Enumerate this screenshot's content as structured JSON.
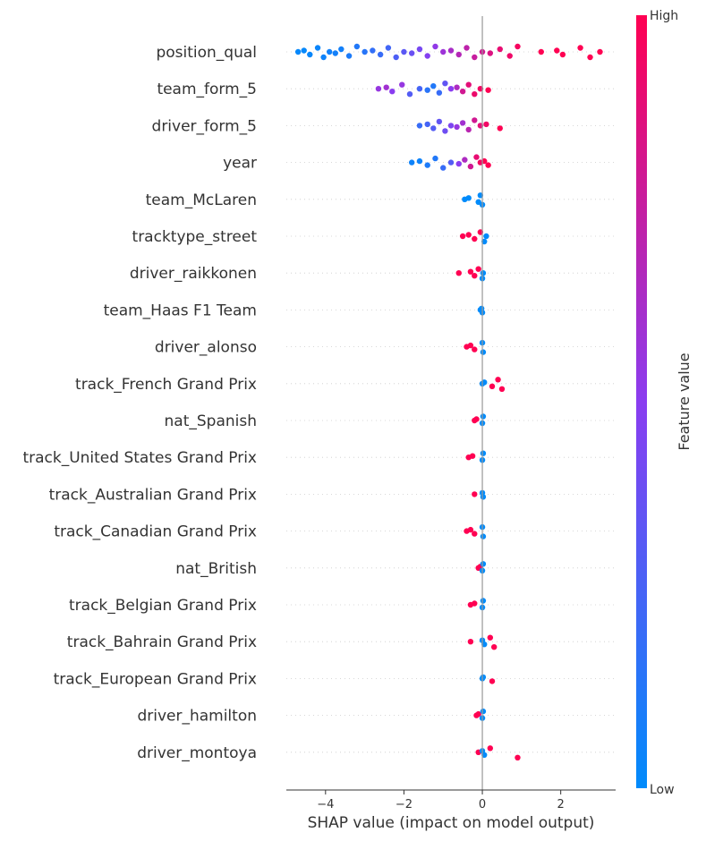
{
  "chart_data": {
    "type": "scatter",
    "subtype": "shap-beeswarm",
    "title": "",
    "xlabel": "SHAP value (impact on model output)",
    "xlim": [
      -5.0,
      3.4
    ],
    "xticks": [
      -4,
      -2,
      0,
      2
    ],
    "xtick_labels": [
      "−4",
      "−2",
      "0",
      "2"
    ],
    "grid": false,
    "zero_line": true,
    "colorbar": {
      "title": "Feature value",
      "high_label": "High",
      "low_label": "Low",
      "low_color": "#008bfb",
      "high_color": "#ff0052"
    },
    "features": [
      {
        "name": "position_qual",
        "points": [
          {
            "x": -4.7,
            "v": 0.02
          },
          {
            "x": -4.55,
            "v": 0.02
          },
          {
            "x": -4.4,
            "v": 0.03
          },
          {
            "x": -4.2,
            "v": 0.04
          },
          {
            "x": -4.05,
            "v": 0.05
          },
          {
            "x": -3.9,
            "v": 0.06
          },
          {
            "x": -3.75,
            "v": 0.07
          },
          {
            "x": -3.6,
            "v": 0.07
          },
          {
            "x": -3.4,
            "v": 0.1
          },
          {
            "x": -3.2,
            "v": 0.12
          },
          {
            "x": -3.0,
            "v": 0.14
          },
          {
            "x": -2.8,
            "v": 0.18
          },
          {
            "x": -2.6,
            "v": 0.2
          },
          {
            "x": -2.4,
            "v": 0.24
          },
          {
            "x": -2.2,
            "v": 0.28
          },
          {
            "x": -2.0,
            "v": 0.33
          },
          {
            "x": -1.8,
            "v": 0.38
          },
          {
            "x": -1.6,
            "v": 0.43
          },
          {
            "x": -1.4,
            "v": 0.48
          },
          {
            "x": -1.2,
            "v": 0.53
          },
          {
            "x": -1.0,
            "v": 0.58
          },
          {
            "x": -0.8,
            "v": 0.63
          },
          {
            "x": -0.6,
            "v": 0.68
          },
          {
            "x": -0.4,
            "v": 0.72
          },
          {
            "x": -0.2,
            "v": 0.76
          },
          {
            "x": 0.0,
            "v": 0.8
          },
          {
            "x": 0.2,
            "v": 0.85
          },
          {
            "x": 0.45,
            "v": 0.9
          },
          {
            "x": 0.7,
            "v": 0.93
          },
          {
            "x": 0.9,
            "v": 0.96
          },
          {
            "x": 1.5,
            "v": 1.0
          },
          {
            "x": 1.9,
            "v": 1.0
          },
          {
            "x": 2.05,
            "v": 1.0
          },
          {
            "x": 2.5,
            "v": 1.0
          },
          {
            "x": 2.75,
            "v": 1.0
          },
          {
            "x": 3.0,
            "v": 1.0
          }
        ]
      },
      {
        "name": "team_form_5",
        "points": [
          {
            "x": -2.65,
            "v": 0.55
          },
          {
            "x": -2.45,
            "v": 0.6
          },
          {
            "x": -2.3,
            "v": 0.5
          },
          {
            "x": -2.05,
            "v": 0.55
          },
          {
            "x": -1.85,
            "v": 0.3
          },
          {
            "x": -1.6,
            "v": 0.25
          },
          {
            "x": -1.4,
            "v": 0.15
          },
          {
            "x": -1.25,
            "v": 0.12
          },
          {
            "x": -1.1,
            "v": 0.2
          },
          {
            "x": -0.95,
            "v": 0.35
          },
          {
            "x": -0.8,
            "v": 0.5
          },
          {
            "x": -0.65,
            "v": 0.65
          },
          {
            "x": -0.5,
            "v": 0.8
          },
          {
            "x": -0.35,
            "v": 0.88
          },
          {
            "x": -0.2,
            "v": 0.92
          },
          {
            "x": -0.05,
            "v": 0.95
          },
          {
            "x": 0.15,
            "v": 1.0
          }
        ]
      },
      {
        "name": "driver_form_5",
        "points": [
          {
            "x": -1.6,
            "v": 0.2
          },
          {
            "x": -1.4,
            "v": 0.25
          },
          {
            "x": -1.25,
            "v": 0.3
          },
          {
            "x": -1.1,
            "v": 0.35
          },
          {
            "x": -0.95,
            "v": 0.4
          },
          {
            "x": -0.8,
            "v": 0.45
          },
          {
            "x": -0.65,
            "v": 0.55
          },
          {
            "x": -0.5,
            "v": 0.6
          },
          {
            "x": -0.35,
            "v": 0.7
          },
          {
            "x": -0.2,
            "v": 0.8
          },
          {
            "x": -0.05,
            "v": 0.88
          },
          {
            "x": 0.1,
            "v": 0.94
          },
          {
            "x": 0.45,
            "v": 1.0
          }
        ]
      },
      {
        "name": "year",
        "points": [
          {
            "x": -1.8,
            "v": 0.05
          },
          {
            "x": -1.6,
            "v": 0.05
          },
          {
            "x": -1.4,
            "v": 0.1
          },
          {
            "x": -1.2,
            "v": 0.12
          },
          {
            "x": -1.0,
            "v": 0.2
          },
          {
            "x": -0.8,
            "v": 0.3
          },
          {
            "x": -0.6,
            "v": 0.5
          },
          {
            "x": -0.45,
            "v": 0.65
          },
          {
            "x": -0.3,
            "v": 0.8
          },
          {
            "x": -0.15,
            "v": 0.9
          },
          {
            "x": -0.05,
            "v": 0.95
          },
          {
            "x": 0.05,
            "v": 1.0
          },
          {
            "x": 0.15,
            "v": 1.0
          }
        ]
      },
      {
        "name": "team_McLaren",
        "points": [
          {
            "x": -0.45,
            "v": 0.0
          },
          {
            "x": -0.35,
            "v": 0.0
          },
          {
            "x": -0.1,
            "v": 0.0
          },
          {
            "x": -0.05,
            "v": 0.0
          },
          {
            "x": 0.0,
            "v": 0.0
          }
        ]
      },
      {
        "name": "tracktype_street",
        "points": [
          {
            "x": -0.5,
            "v": 1.0
          },
          {
            "x": -0.35,
            "v": 1.0
          },
          {
            "x": -0.2,
            "v": 1.0
          },
          {
            "x": -0.05,
            "v": 1.0
          },
          {
            "x": 0.05,
            "v": 0.0
          },
          {
            "x": 0.1,
            "v": 0.0
          }
        ]
      },
      {
        "name": "driver_raikkonen",
        "points": [
          {
            "x": -0.6,
            "v": 1.0
          },
          {
            "x": -0.3,
            "v": 1.0
          },
          {
            "x": -0.2,
            "v": 1.0
          },
          {
            "x": -0.1,
            "v": 1.0
          },
          {
            "x": 0.0,
            "v": 0.0
          },
          {
            "x": 0.02,
            "v": 0.0
          }
        ]
      },
      {
        "name": "team_Haas F1 Team",
        "points": [
          {
            "x": -0.05,
            "v": 0.0
          },
          {
            "x": -0.02,
            "v": 0.0
          },
          {
            "x": 0.0,
            "v": 0.0
          }
        ]
      },
      {
        "name": "driver_alonso",
        "points": [
          {
            "x": -0.4,
            "v": 1.0
          },
          {
            "x": -0.3,
            "v": 1.0
          },
          {
            "x": -0.2,
            "v": 1.0
          },
          {
            "x": 0.0,
            "v": 0.0
          },
          {
            "x": 0.02,
            "v": 0.0
          }
        ]
      },
      {
        "name": "track_French Grand Prix",
        "points": [
          {
            "x": 0.0,
            "v": 0.0
          },
          {
            "x": 0.05,
            "v": 0.0
          },
          {
            "x": 0.25,
            "v": 1.0
          },
          {
            "x": 0.4,
            "v": 1.0
          },
          {
            "x": 0.5,
            "v": 1.0
          }
        ]
      },
      {
        "name": "nat_Spanish",
        "points": [
          {
            "x": -0.2,
            "v": 1.0
          },
          {
            "x": -0.15,
            "v": 1.0
          },
          {
            "x": 0.0,
            "v": 0.0
          },
          {
            "x": 0.02,
            "v": 0.0
          }
        ]
      },
      {
        "name": "track_United States Grand Prix",
        "points": [
          {
            "x": -0.35,
            "v": 1.0
          },
          {
            "x": -0.25,
            "v": 1.0
          },
          {
            "x": 0.0,
            "v": 0.0
          },
          {
            "x": 0.02,
            "v": 0.0
          }
        ]
      },
      {
        "name": "track_Australian Grand Prix",
        "points": [
          {
            "x": -0.2,
            "v": 1.0
          },
          {
            "x": 0.0,
            "v": 0.0
          },
          {
            "x": 0.02,
            "v": 0.0
          }
        ]
      },
      {
        "name": "track_Canadian Grand Prix",
        "points": [
          {
            "x": -0.4,
            "v": 1.0
          },
          {
            "x": -0.3,
            "v": 1.0
          },
          {
            "x": -0.2,
            "v": 1.0
          },
          {
            "x": 0.0,
            "v": 0.0
          },
          {
            "x": 0.02,
            "v": 0.0
          }
        ]
      },
      {
        "name": "nat_British",
        "points": [
          {
            "x": -0.1,
            "v": 1.0
          },
          {
            "x": -0.05,
            "v": 1.0
          },
          {
            "x": 0.0,
            "v": 0.0
          },
          {
            "x": 0.02,
            "v": 0.0
          }
        ]
      },
      {
        "name": "track_Belgian Grand Prix",
        "points": [
          {
            "x": -0.3,
            "v": 1.0
          },
          {
            "x": -0.2,
            "v": 1.0
          },
          {
            "x": 0.0,
            "v": 0.0
          },
          {
            "x": 0.02,
            "v": 0.0
          }
        ]
      },
      {
        "name": "track_Bahrain Grand Prix",
        "points": [
          {
            "x": -0.3,
            "v": 1.0
          },
          {
            "x": 0.0,
            "v": 0.0
          },
          {
            "x": 0.05,
            "v": 0.0
          },
          {
            "x": 0.2,
            "v": 1.0
          },
          {
            "x": 0.3,
            "v": 1.0
          }
        ]
      },
      {
        "name": "track_European Grand Prix",
        "points": [
          {
            "x": 0.0,
            "v": 0.0
          },
          {
            "x": 0.02,
            "v": 0.0
          },
          {
            "x": 0.25,
            "v": 1.0
          }
        ]
      },
      {
        "name": "driver_hamilton",
        "points": [
          {
            "x": -0.15,
            "v": 1.0
          },
          {
            "x": -0.1,
            "v": 1.0
          },
          {
            "x": 0.0,
            "v": 0.0
          },
          {
            "x": 0.02,
            "v": 0.0
          }
        ]
      },
      {
        "name": "driver_montoya",
        "points": [
          {
            "x": -0.1,
            "v": 1.0
          },
          {
            "x": 0.0,
            "v": 0.0
          },
          {
            "x": 0.05,
            "v": 0.0
          },
          {
            "x": 0.2,
            "v": 1.0
          },
          {
            "x": 0.9,
            "v": 1.0
          }
        ]
      }
    ]
  }
}
